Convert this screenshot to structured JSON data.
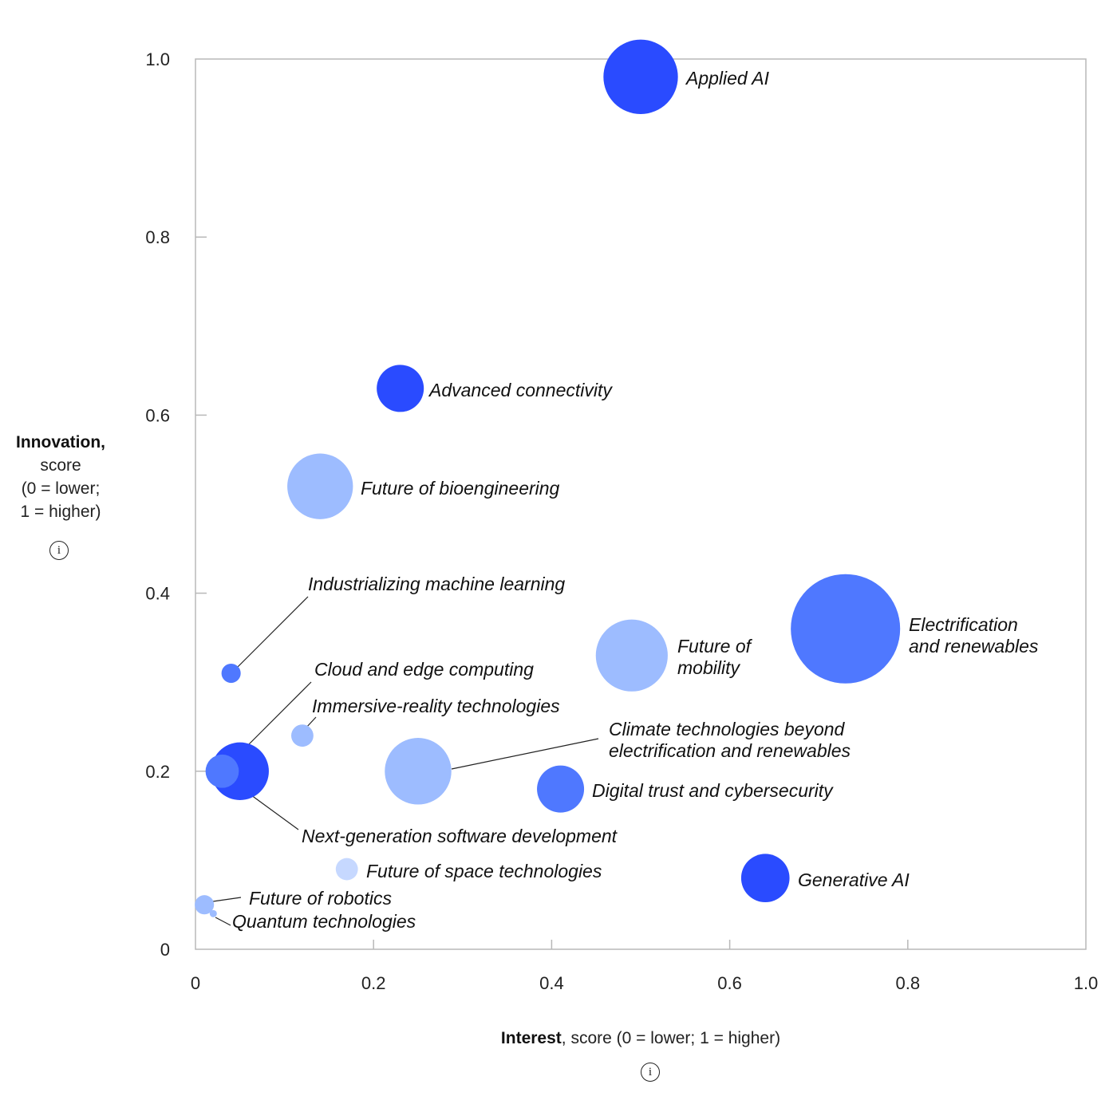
{
  "chart_data": {
    "type": "scatter",
    "subtype": "bubble",
    "xlabel_bold": "Interest",
    "xlabel_rest": ", score (0 = lower; 1 = higher)",
    "ylabel_bold": "Innovation,",
    "ylabel_lines": [
      "score",
      "(0 = lower;",
      "1 = higher)"
    ],
    "info_icon": "i",
    "xlim": [
      0,
      1
    ],
    "ylim": [
      0,
      1
    ],
    "x_ticks": [
      "0",
      "0.2",
      "0.4",
      "0.6",
      "0.8",
      "1.0"
    ],
    "y_ticks": [
      "0",
      "0.2",
      "0.4",
      "0.6",
      "0.8",
      "1.0"
    ],
    "colors": {
      "dark": "#2a4bff",
      "mid": "#4f78ff",
      "light": "#9dbcff",
      "pale": "#c6d8ff"
    },
    "points": [
      {
        "name": "Applied AI",
        "lines": [
          "Applied AI"
        ],
        "x": 0.5,
        "y": 0.98,
        "size": 0.045,
        "shade": "dark"
      },
      {
        "name": "Advanced connectivity",
        "lines": [
          "Advanced connectivity"
        ],
        "x": 0.23,
        "y": 0.63,
        "size": 0.018,
        "shade": "dark"
      },
      {
        "name": "Future of bioengineering",
        "lines": [
          "Future of bioengineering"
        ],
        "x": 0.14,
        "y": 0.52,
        "size": 0.035,
        "shade": "light"
      },
      {
        "name": "Industrializing machine learning",
        "lines": [
          "Industrializing machine learning"
        ],
        "x": 0.04,
        "y": 0.31,
        "size": 0.003,
        "shade": "mid"
      },
      {
        "name": "Electrification and renewables",
        "lines": [
          "Electrification",
          "and renewables"
        ],
        "x": 0.73,
        "y": 0.36,
        "size": 0.097,
        "shade": "mid"
      },
      {
        "name": "Future of mobility",
        "lines": [
          "Future of",
          "mobility"
        ],
        "x": 0.49,
        "y": 0.33,
        "size": 0.042,
        "shade": "light"
      },
      {
        "name": "Cloud and edge computing",
        "lines": [
          "Cloud and edge computing"
        ],
        "x": 0.05,
        "y": 0.2,
        "size": 0.027,
        "shade": "dark"
      },
      {
        "name": "Immersive-reality technologies",
        "lines": [
          "Immersive-reality technologies"
        ],
        "x": 0.12,
        "y": 0.24,
        "size": 0.004,
        "shade": "light"
      },
      {
        "name": "Climate technologies beyond electrification and renewables",
        "lines": [
          "Climate technologies beyond",
          "electrification and renewables"
        ],
        "x": 0.25,
        "y": 0.2,
        "size": 0.036,
        "shade": "light"
      },
      {
        "name": "Next-generation software development",
        "lines": [
          "Next-generation software development"
        ],
        "x": 0.03,
        "y": 0.2,
        "size": 0.009,
        "shade": "mid"
      },
      {
        "name": "Digital trust and cybersecurity",
        "lines": [
          "Digital trust and cybersecurity"
        ],
        "x": 0.41,
        "y": 0.18,
        "size": 0.018,
        "shade": "mid"
      },
      {
        "name": "Future of space technologies",
        "lines": [
          "Future of space technologies"
        ],
        "x": 0.17,
        "y": 0.09,
        "size": 0.004,
        "shade": "pale"
      },
      {
        "name": "Generative AI",
        "lines": [
          "Generative AI"
        ],
        "x": 0.64,
        "y": 0.08,
        "size": 0.019,
        "shade": "dark"
      },
      {
        "name": "Future of robotics",
        "lines": [
          "Future of robotics"
        ],
        "x": 0.01,
        "y": 0.05,
        "size": 0.003,
        "shade": "light"
      },
      {
        "name": "Quantum technologies",
        "lines": [
          "Quantum technologies"
        ],
        "x": 0.02,
        "y": 0.04,
        "size": 0.0004,
        "shade": "light"
      }
    ]
  }
}
